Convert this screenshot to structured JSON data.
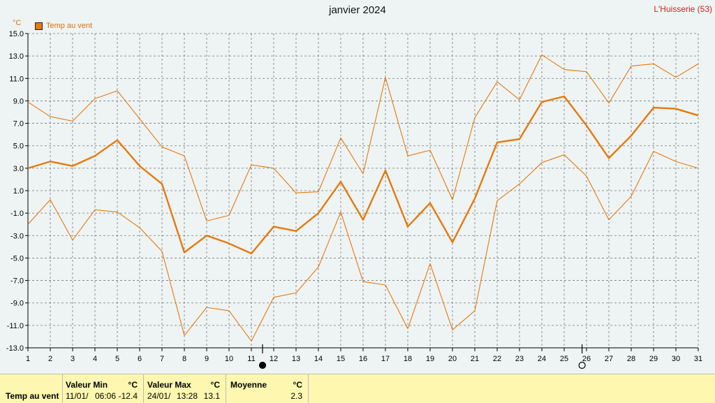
{
  "header": {
    "title": "janvier 2024",
    "station": "L'Huisserie (53)",
    "unit": "°C"
  },
  "legend": {
    "label": "Temp au vent",
    "color": "#e8780c"
  },
  "colors": {
    "series": "#e8780c",
    "background": "#eef4f4",
    "grid": "#777777",
    "station": "#d02020"
  },
  "markers": [
    {
      "day": 11.5,
      "icon": "new-moon-icon"
    },
    {
      "day": 25.8,
      "icon": "full-moon-icon"
    }
  ],
  "chart_data": {
    "type": "line",
    "title": "janvier 2024",
    "xlabel": "",
    "ylabel": "°C",
    "x": [
      1,
      2,
      3,
      4,
      5,
      6,
      7,
      8,
      9,
      10,
      11,
      12,
      13,
      14,
      15,
      16,
      17,
      18,
      19,
      20,
      21,
      22,
      23,
      24,
      25,
      26,
      27,
      28,
      29,
      30,
      31
    ],
    "xticks": [
      "1",
      "2",
      "3",
      "4",
      "5",
      "6",
      "7",
      "8",
      "9",
      "10",
      "11",
      "12",
      "13",
      "14",
      "15",
      "16",
      "17",
      "18",
      "19",
      "20",
      "21",
      "22",
      "23",
      "24",
      "25",
      "26",
      "27",
      "28",
      "29",
      "30",
      "31"
    ],
    "ylim": [
      -13.0,
      15.0
    ],
    "yticks": [
      "15.0",
      "13.0",
      "11.0",
      "9.0",
      "7.0",
      "5.0",
      "3.0",
      "1.0",
      "-1.0",
      "-3.0",
      "-5.0",
      "-7.0",
      "-9.0",
      "-11.0",
      "-13.0"
    ],
    "grid": true,
    "legend_position": "top-left",
    "series": [
      {
        "name": "Temp au vent",
        "role": "avg",
        "values": [
          3.0,
          3.6,
          3.2,
          4.1,
          5.5,
          3.2,
          1.6,
          -4.5,
          -3.0,
          -3.7,
          -4.6,
          -2.2,
          -2.6,
          -1.0,
          1.8,
          -1.6,
          2.8,
          -2.2,
          -0.1,
          -3.6,
          0.3,
          5.3,
          5.6,
          8.9,
          9.4,
          6.8,
          3.9,
          5.9,
          8.4,
          8.3,
          7.7
        ]
      },
      {
        "role": "max",
        "values": [
          8.9,
          7.6,
          7.2,
          9.2,
          9.9,
          7.4,
          4.9,
          4.1,
          -1.7,
          -1.2,
          3.3,
          3.0,
          0.8,
          0.9,
          5.7,
          2.5,
          11.1,
          4.1,
          4.6,
          0.2,
          7.5,
          10.7,
          9.1,
          13.1,
          11.8,
          11.6,
          8.8,
          12.1,
          12.3,
          11.1,
          12.3
        ]
      },
      {
        "role": "min",
        "values": [
          -2.0,
          0.2,
          -3.4,
          -0.7,
          -0.9,
          -2.3,
          -4.4,
          -11.9,
          -9.4,
          -9.7,
          -12.4,
          -8.5,
          -8.1,
          -5.8,
          -0.9,
          -7.1,
          -7.4,
          -11.3,
          -5.5,
          -11.4,
          -9.7,
          0.1,
          1.6,
          3.5,
          4.2,
          2.3,
          -1.6,
          0.5,
          4.5,
          3.6,
          3.0
        ]
      }
    ]
  },
  "stats": {
    "row_label": "Temp au vent",
    "min": {
      "header": "Valeur Min",
      "unit": "°C",
      "date": "11/01/",
      "time": "06:06",
      "value": "-12.4"
    },
    "max": {
      "header": "Valeur Max",
      "unit": "°C",
      "date": "24/01/",
      "time": "13:28",
      "value": "13.1"
    },
    "avg": {
      "header": "Moyenne",
      "unit": "°C",
      "value": "2.3"
    }
  }
}
